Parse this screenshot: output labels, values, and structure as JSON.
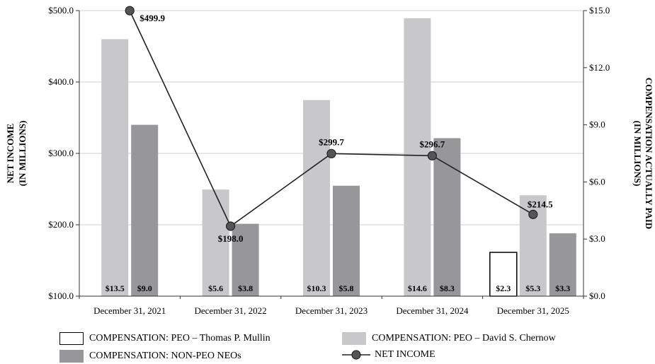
{
  "chart_data": {
    "type": "bar",
    "categories": [
      "December 31, 2021",
      "December 31, 2022",
      "December 31, 2023",
      "December 31, 2024",
      "December 31, 2025"
    ],
    "ylabel_left_line1": "NET INCOME",
    "ylabel_left_line2": "(IN MILLIONS)",
    "ylabel_right_line1": "COMPENSATION ACTUALLY PAID",
    "ylabel_right_line2": "(IN MILLIONS)",
    "left_axis": {
      "ylim": [
        100,
        500
      ],
      "ticks": [
        "$100.0",
        "$200.0",
        "$300.0",
        "$400.0",
        "$500.0"
      ],
      "tick_values": [
        100,
        200,
        300,
        400,
        500
      ]
    },
    "right_axis": {
      "ylim": [
        0,
        15
      ],
      "ticks": [
        "$0.0",
        "$3.0",
        "$6.0",
        "$9.0",
        "$12.0",
        "$15.0"
      ],
      "tick_values": [
        0,
        3,
        6,
        9,
        12,
        15
      ]
    },
    "grid": true,
    "legend_position": "bottom",
    "series": [
      {
        "name": "COMPENSATION: PEO – Thomas P. Mullin",
        "axis": "right",
        "kind": "bar",
        "color": "#ffffff",
        "stroke": "#000000",
        "values": [
          null,
          null,
          null,
          null,
          2.3
        ],
        "labels": [
          "",
          "",
          "",
          "",
          "$2.3"
        ]
      },
      {
        "name": "COMPENSATION: PEO – David S. Chernow",
        "axis": "right",
        "kind": "bar",
        "color": "#c8c8ca",
        "stroke": "none",
        "values": [
          13.5,
          5.6,
          10.3,
          14.6,
          5.3
        ],
        "labels": [
          "$13.5",
          "$5.6",
          "$10.3",
          "$14.6",
          "$5.3"
        ]
      },
      {
        "name": "COMPENSATION: NON-PEO NEOs",
        "axis": "right",
        "kind": "bar",
        "color": "#97979a",
        "stroke": "none",
        "values": [
          9.0,
          3.8,
          5.8,
          8.3,
          3.3
        ],
        "labels": [
          "$9.0",
          "$3.8",
          "$5.8",
          "$8.3",
          "$3.3"
        ]
      },
      {
        "name": "NET INCOME",
        "axis": "left",
        "kind": "line",
        "color": "#222222",
        "values": [
          499.9,
          198.0,
          299.7,
          296.7,
          214.5
        ],
        "labels": [
          "$499.9",
          "$198.0",
          "$299.7",
          "$296.7",
          "$214.5"
        ]
      }
    ]
  },
  "legend": {
    "mullin": "COMPENSATION: PEO – Thomas P. Mullin",
    "chernow": "COMPENSATION: PEO – David S. Chernow",
    "nonpeo": "COMPENSATION: NON-PEO NEOs",
    "netincome": "NET INCOME"
  }
}
